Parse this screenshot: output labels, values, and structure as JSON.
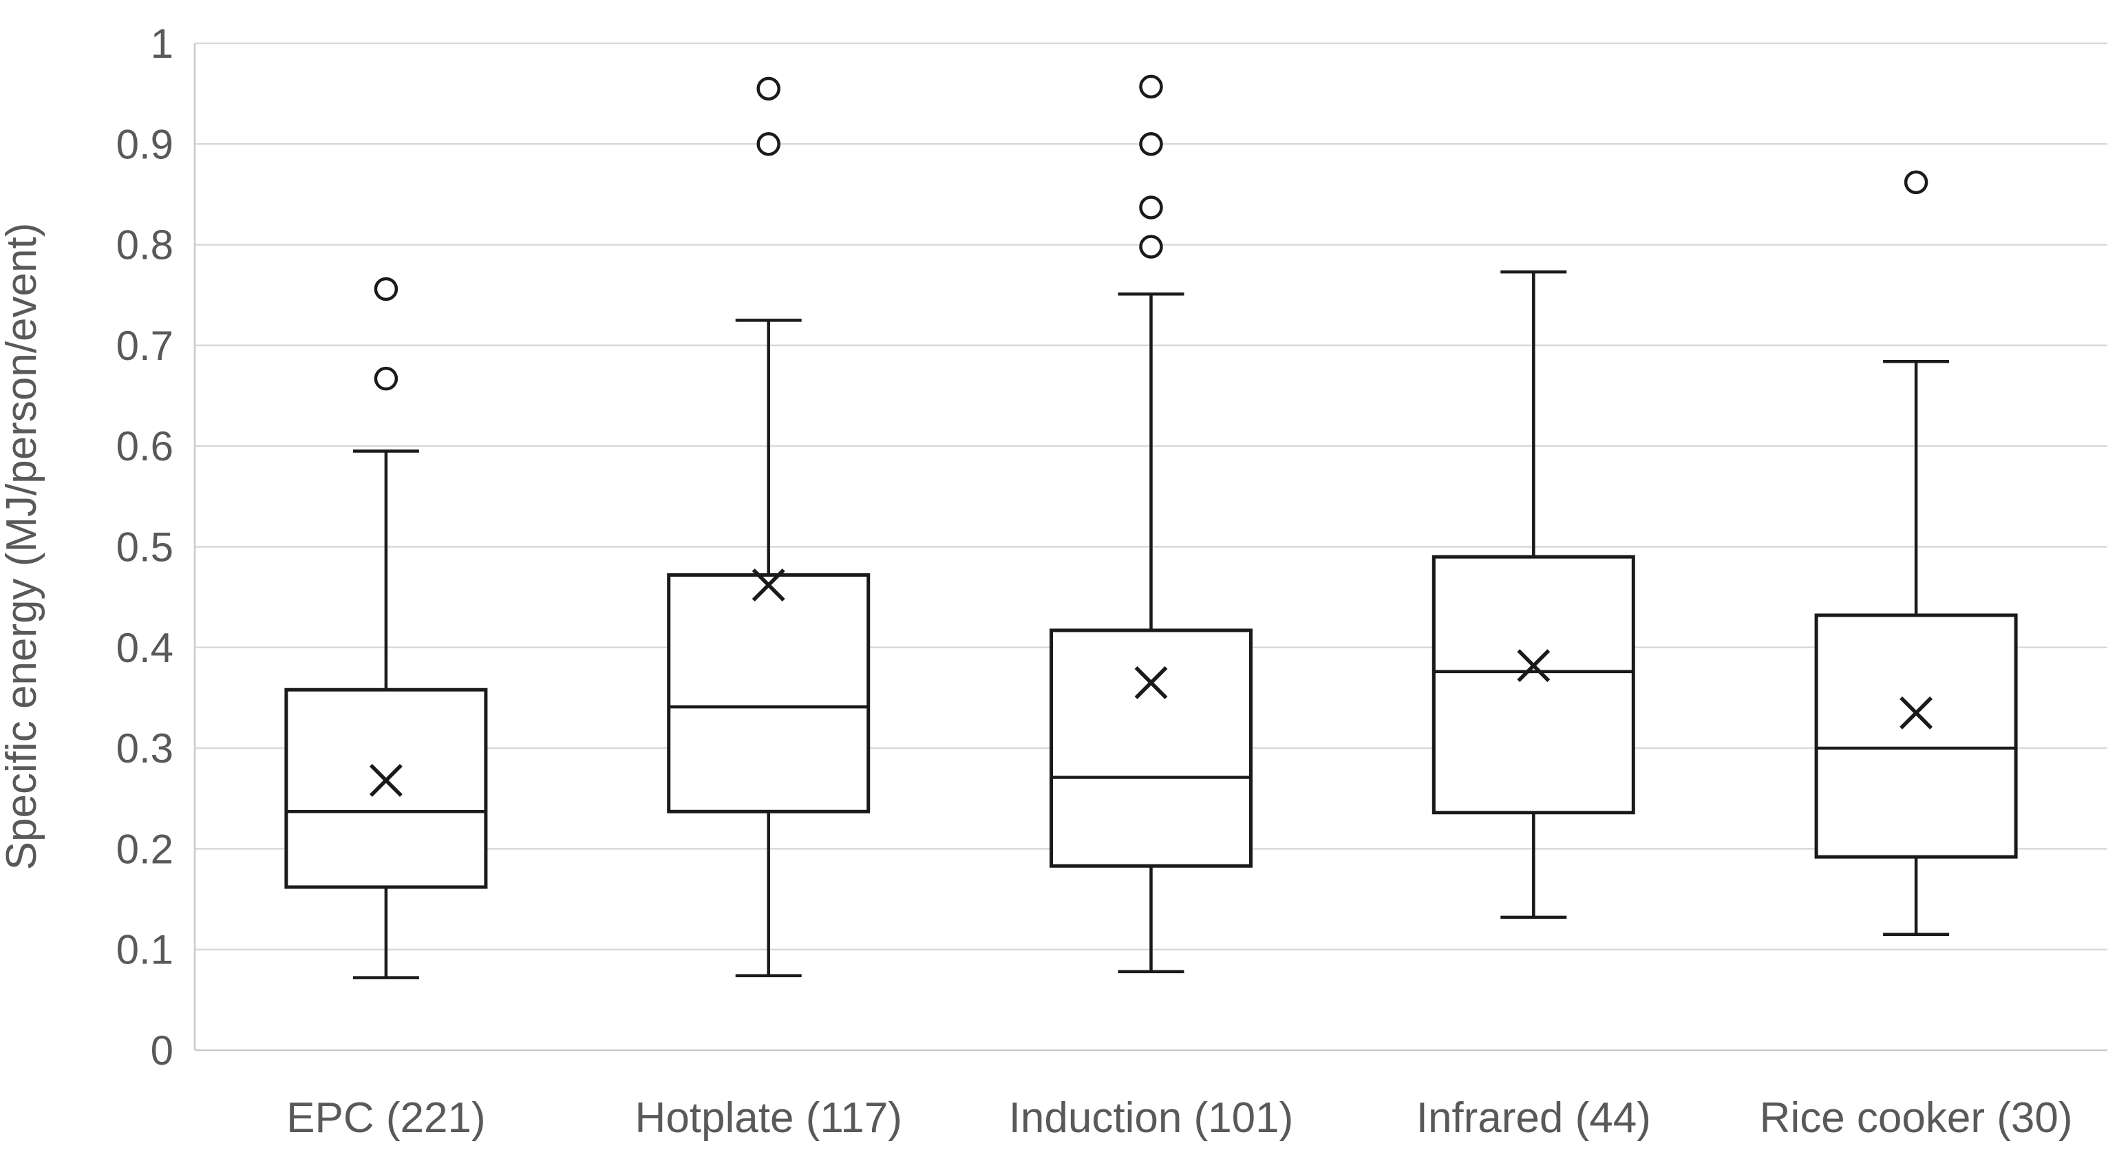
{
  "chart_data": {
    "type": "box",
    "title": "",
    "xlabel": "",
    "ylabel": "Specific energy (MJ/person/event)",
    "ylim": [
      0,
      1
    ],
    "ytick_step": 0.1,
    "ytick_labels": [
      "0",
      "0.1",
      "0.2",
      "0.3",
      "0.4",
      "0.5",
      "0.6",
      "0.7",
      "0.8",
      "0.9",
      "1"
    ],
    "grid": true,
    "legend": false,
    "categories": [
      "EPC (221)",
      "Hotplate (117)",
      "Induction (101)",
      "Infrared (44)",
      "Rice cooker (30)"
    ],
    "series": [
      {
        "name": "EPC (221)",
        "min": 0.072,
        "q1": 0.162,
        "median": 0.237,
        "q3": 0.358,
        "max": 0.595,
        "mean": 0.268,
        "outliers": [
          0.667,
          0.756
        ]
      },
      {
        "name": "Hotplate (117)",
        "min": 0.074,
        "q1": 0.237,
        "median": 0.341,
        "q3": 0.472,
        "max": 0.725,
        "mean": 0.462,
        "outliers": [
          0.9,
          0.955
        ]
      },
      {
        "name": "Induction (101)",
        "min": 0.078,
        "q1": 0.183,
        "median": 0.271,
        "q3": 0.417,
        "max": 0.751,
        "mean": 0.365,
        "outliers": [
          0.798,
          0.837,
          0.9,
          0.957
        ]
      },
      {
        "name": "Infrared (44)",
        "min": 0.132,
        "q1": 0.236,
        "median": 0.376,
        "q3": 0.49,
        "max": 0.773,
        "mean": 0.382,
        "outliers": []
      },
      {
        "name": "Rice cooker (30)",
        "min": 0.115,
        "q1": 0.192,
        "median": 0.3,
        "q3": 0.432,
        "max": 0.684,
        "mean": 0.335,
        "outliers": [
          0.862
        ]
      }
    ],
    "colors": {
      "box_stroke": "#1a1a1a",
      "box_fill": "#ffffff",
      "mean_marker": "#1a1a1a",
      "outlier_stroke": "#1a1a1a",
      "gridline": "#d9d9d9",
      "axis_line": "#c9c9c9",
      "label_text": "#595959",
      "background": "#ffffff"
    }
  }
}
